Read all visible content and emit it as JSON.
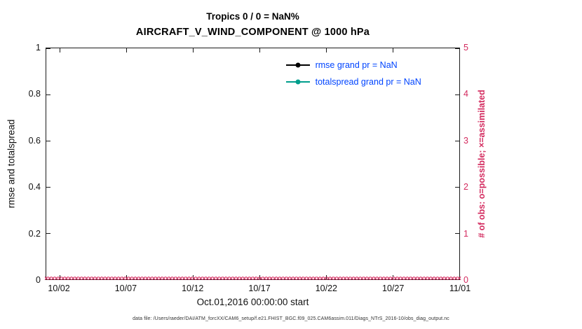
{
  "page": {
    "footer": "data file: /Users/raeder/DAI/ATM_forcXX/CAM6_setup/f.e21.FHIST_BGC.f09_025.CAM6assim.011/Diags_NTrS_2016-10/obs_diag_output.nc"
  },
  "colors": {
    "obs_pink": "#d32a5e",
    "legend_text_blue": "#0044ff",
    "totalspread_teal": "#009e8c",
    "rmse_black": "#000000",
    "axis_black": "#1a1a1a"
  },
  "chart_data": {
    "type": "line",
    "title": "Tropics 0 / 0 = NaN%",
    "subtitle": "AIRCRAFT_V_WIND_COMPONENT @ 1000 hPa",
    "xlabel": "Oct.01,2016 00:00:00 start",
    "ylabel_left": "rmse and totalspread",
    "ylabel_right": "# of obs: o=possible; ×=assimilated",
    "grid": false,
    "x_axis": {
      "lim_days": [
        0,
        31
      ],
      "start": "Oct.01,2016 00:00:00",
      "ticks": [
        {
          "day": 1,
          "label": "10/02"
        },
        {
          "day": 6,
          "label": "10/07"
        },
        {
          "day": 11,
          "label": "10/12"
        },
        {
          "day": 16,
          "label": "10/17"
        },
        {
          "day": 21,
          "label": "10/22"
        },
        {
          "day": 26,
          "label": "10/27"
        },
        {
          "day": 31,
          "label": "11/01"
        }
      ]
    },
    "y_left_axis": {
      "lim": [
        0,
        1
      ],
      "ticks": [
        {
          "value": 0,
          "label": "0"
        },
        {
          "value": 0.2,
          "label": "0.2"
        },
        {
          "value": 0.4,
          "label": "0.4"
        },
        {
          "value": 0.6,
          "label": "0.6"
        },
        {
          "value": 0.8,
          "label": "0.8"
        },
        {
          "value": 1,
          "label": "1"
        }
      ]
    },
    "y_right_axis": {
      "lim": [
        0,
        5
      ],
      "color": "#d32a5e",
      "ticks": [
        {
          "value": 0,
          "label": "0"
        },
        {
          "value": 1,
          "label": "1"
        },
        {
          "value": 2,
          "label": "2"
        },
        {
          "value": 3,
          "label": "3"
        },
        {
          "value": 4,
          "label": "4"
        },
        {
          "value": 5,
          "label": "5"
        }
      ]
    },
    "legend": {
      "position": "top-right",
      "text_color": "#0044ff",
      "entries": [
        {
          "label": "rmse grand pr = NaN",
          "line_color": "#000000",
          "marker": "dot"
        },
        {
          "label": "totalspread grand pr = NaN",
          "line_color": "#009e8c",
          "marker": "dot"
        }
      ]
    },
    "series": [
      {
        "name": "rmse",
        "axis": "left",
        "grand_pr": "NaN",
        "values": "NaN",
        "color": "#000000"
      },
      {
        "name": "totalspread",
        "axis": "left",
        "grand_pr": "NaN",
        "values": "NaN",
        "color": "#009e8c"
      },
      {
        "name": "possible observations",
        "axis": "right",
        "marker": "o",
        "marker_color": "#d32a5e",
        "constant_value": 0,
        "n_points": 124
      },
      {
        "name": "assimilated observations",
        "axis": "right",
        "marker": "×",
        "marker_color": "#d32a5e",
        "constant_value": 0,
        "n_points": 124
      }
    ]
  }
}
